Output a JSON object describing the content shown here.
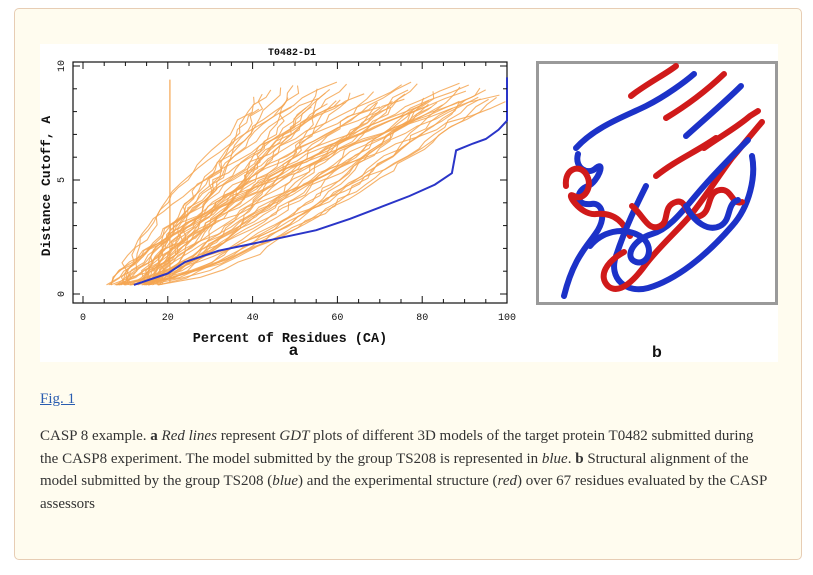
{
  "figure": {
    "link_text": "Fig. 1",
    "panel_a": {
      "label": "a",
      "chart_data": {
        "type": "line",
        "title": "T0482-D1",
        "xlabel": "Percent of Residues (CA)",
        "ylabel": "Distance Cutoff, A",
        "xlim": [
          0,
          100
        ],
        "ylim": [
          0,
          10
        ],
        "x_ticks": [
          "20",
          "40",
          "60",
          "80",
          "100"
        ],
        "y_ticks": [
          "0",
          "5",
          "10"
        ],
        "grid": false,
        "series": [
          {
            "color": "#2a35c8",
            "role": "highlighted model",
            "x": [
              12,
              20,
              24,
              32,
              45,
              55,
              63,
              70,
              77,
              83,
              87,
              88,
              92,
              95,
              98,
              100,
              100
            ],
            "y": [
              0.4,
              0.9,
              1.4,
              1.9,
              2.4,
              2.8,
              3.3,
              3.8,
              4.3,
              4.8,
              5.3,
              6.3,
              6.6,
              6.8,
              7.2,
              7.6,
              9.5
            ]
          }
        ],
        "background_series": {
          "color": "#f4a652",
          "count": 60,
          "x_start_range": [
            6,
            18
          ],
          "x_end_range": [
            40,
            100
          ],
          "y_range": [
            0.4,
            9.3
          ]
        }
      }
    },
    "panel_b": {
      "label": "b",
      "colors": {
        "model": "#1c32c8",
        "experimental": "#d01a1a"
      }
    }
  },
  "caption": {
    "p1": "CASP 8 example. ",
    "a_label": "a",
    "red_lines": "Red lines",
    "p2": " represent ",
    "gdt": "GDT",
    "p3": " plots of different 3D models of the target protein T0482 submitted during the CASP8 experiment. The model submitted by the group TS208 is represented in ",
    "blue": "blue",
    "p4": ". ",
    "b_label": "b",
    "p5": " Structural alignment of the model submitted by the group TS208 (",
    "blue2": "blue",
    "p6": ") and the experimental structure (",
    "red": "red",
    "p7": ") over 67 residues evaluated by the CASP assessors"
  }
}
